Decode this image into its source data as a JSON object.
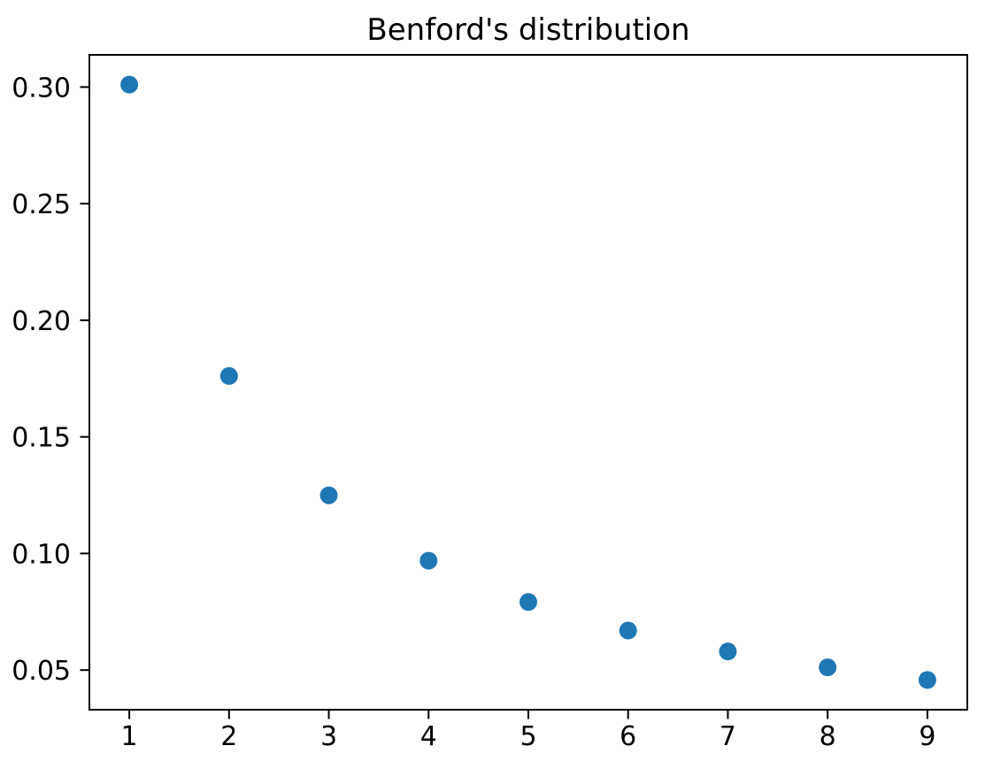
{
  "chart_data": {
    "type": "scatter",
    "title": "Benford's distribution",
    "xlabel": "",
    "ylabel": "",
    "x": [
      1,
      2,
      3,
      4,
      5,
      6,
      7,
      8,
      9
    ],
    "y": [
      0.30103,
      0.17609,
      0.12494,
      0.09691,
      0.07918,
      0.06695,
      0.05799,
      0.05115,
      0.04576
    ],
    "xtick_values": [
      1,
      2,
      3,
      4,
      5,
      6,
      7,
      8,
      9
    ],
    "xtick_labels": [
      "1",
      "2",
      "3",
      "4",
      "5",
      "6",
      "7",
      "8",
      "9"
    ],
    "ytick_values": [
      0.05,
      0.1,
      0.15,
      0.2,
      0.25,
      0.3
    ],
    "ytick_labels": [
      "0.05",
      "0.10",
      "0.15",
      "0.20",
      "0.25",
      "0.30"
    ],
    "xlim": [
      0.6,
      9.4
    ],
    "ylim": [
      0.033,
      0.3138
    ],
    "grid": false,
    "legend": "none",
    "marker_color": "#1f77b4",
    "marker_diameter_px": 20,
    "axis_color": "#000000",
    "background_color": "#ffffff"
  }
}
